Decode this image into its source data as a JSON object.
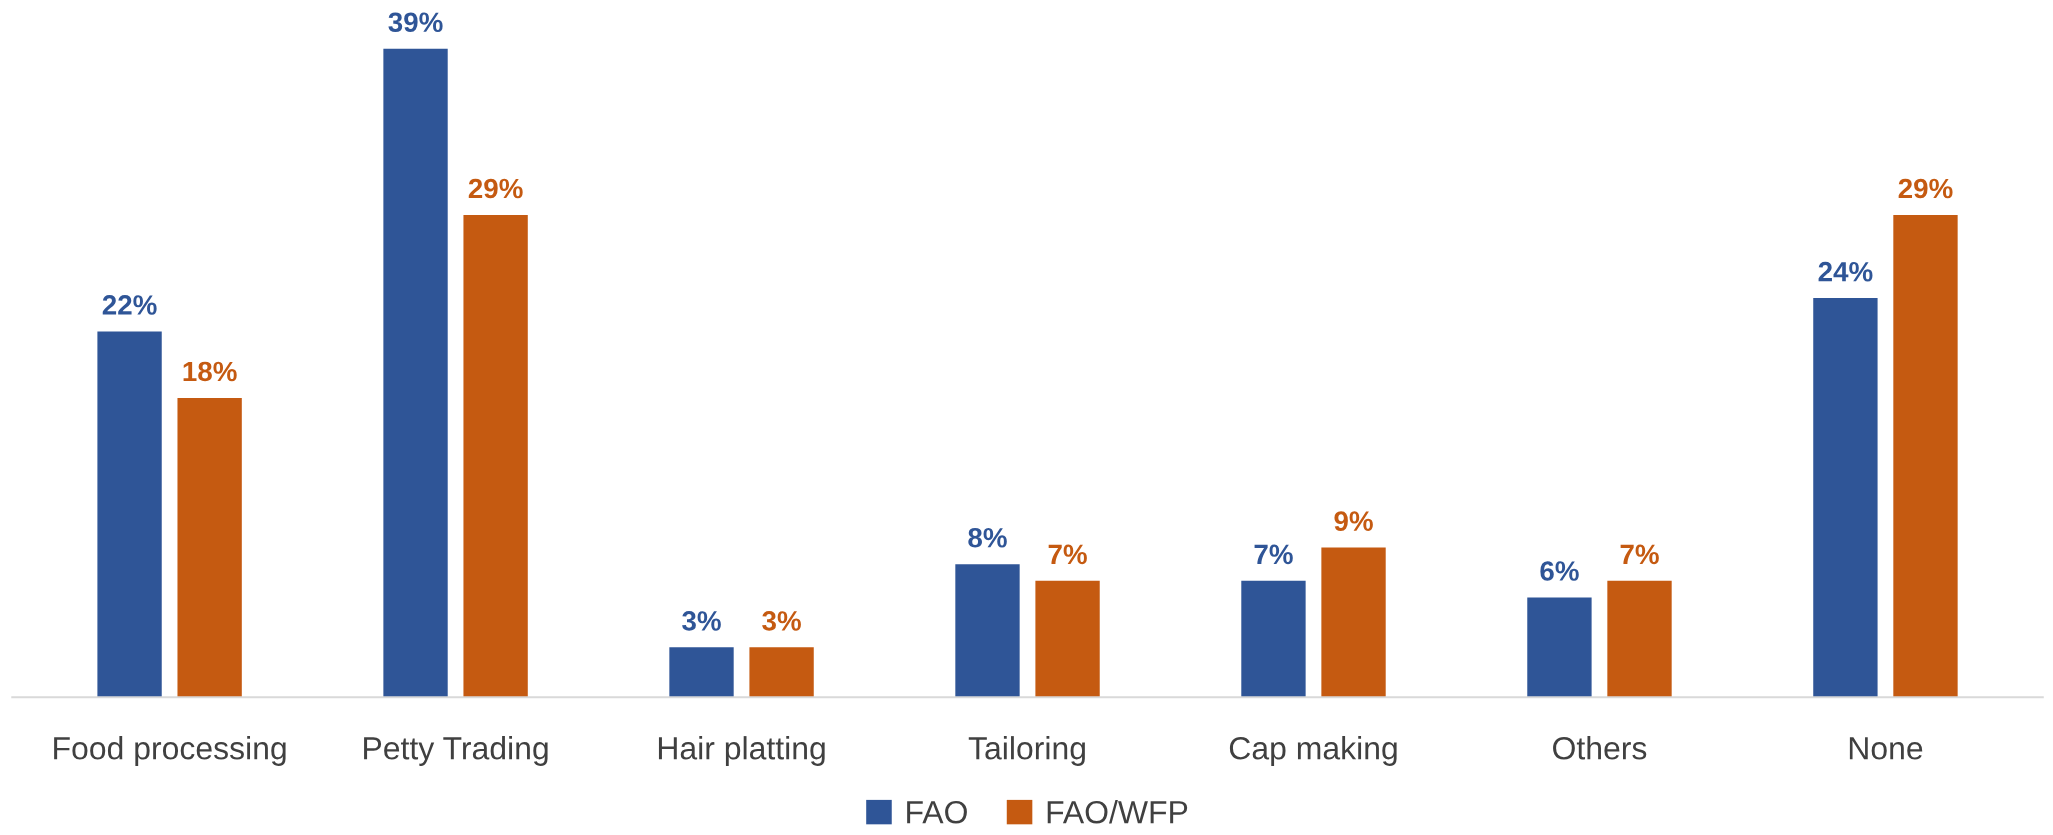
{
  "chart_data": {
    "type": "bar",
    "categories": [
      "Food processing",
      "Petty Trading",
      "Hair platting",
      "Tailoring",
      "Cap making",
      "Others",
      "None"
    ],
    "series": [
      {
        "name": "FAO",
        "color": "#2f5597",
        "values": [
          22,
          39,
          3,
          8,
          7,
          6,
          24
        ],
        "value_labels": [
          "22%",
          "39%",
          "3%",
          "8%",
          "7%",
          "6%",
          "24%"
        ]
      },
      {
        "name": "FAO/WFP",
        "color": "#c55a11",
        "values": [
          18,
          29,
          3,
          7,
          9,
          7,
          29
        ],
        "value_labels": [
          "18%",
          "29%",
          "3%",
          "7%",
          "9%",
          "7%",
          "29%"
        ]
      }
    ],
    "tick_labels": "x",
    "grid": false,
    "legend": "bottom"
  }
}
